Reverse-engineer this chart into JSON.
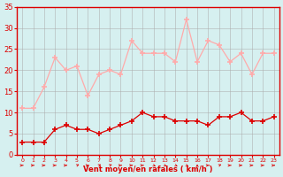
{
  "wind_mean": [
    3,
    3,
    3,
    6,
    7,
    6,
    6,
    5,
    6,
    7,
    8,
    10,
    9,
    9,
    8,
    8,
    8,
    7,
    9,
    9,
    10,
    8,
    8,
    9
  ],
  "wind_gust": [
    11,
    11,
    16,
    23,
    20,
    21,
    14,
    19,
    20,
    19,
    27,
    24,
    24,
    24,
    22,
    32,
    22,
    27,
    26,
    22,
    24,
    19,
    24,
    24
  ],
  "x": [
    0,
    1,
    2,
    3,
    4,
    5,
    6,
    7,
    8,
    9,
    10,
    11,
    12,
    13,
    14,
    15,
    16,
    17,
    18,
    19,
    20,
    21,
    22,
    23
  ],
  "xlabel": "Vent moyen/en rafales ( km/h )",
  "ylim": [
    0,
    35
  ],
  "yticks": [
    0,
    5,
    10,
    15,
    20,
    25,
    30,
    35
  ],
  "xticks": [
    0,
    1,
    2,
    3,
    4,
    5,
    6,
    7,
    8,
    9,
    10,
    11,
    12,
    13,
    14,
    15,
    16,
    17,
    18,
    19,
    20,
    21,
    22,
    23
  ],
  "color_mean": "#dd0000",
  "color_gust": "#ffaaaa",
  "bg_color": "#d6f0f0",
  "grid_color": "#aaaaaa",
  "axis_color": "#dd0000",
  "tick_color": "#dd0000",
  "label_color": "#dd0000"
}
